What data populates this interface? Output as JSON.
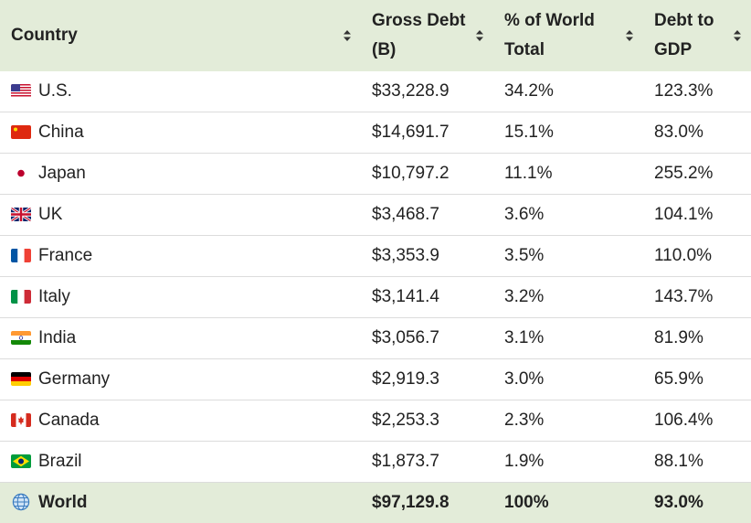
{
  "headers": [
    "Country",
    "Gross Debt (B)",
    "% of World Total",
    "Debt to GDP"
  ],
  "rows": [
    {
      "country": "U.S.",
      "flag": "us-flag-icon",
      "debt": "$33,228.9",
      "pct": "34.2%",
      "gdp": "123.3%"
    },
    {
      "country": "China",
      "flag": "china-flag-icon",
      "debt": "$14,691.7",
      "pct": "15.1%",
      "gdp": "83.0%"
    },
    {
      "country": "Japan",
      "flag": "japan-flag-icon",
      "debt": "$10,797.2",
      "pct": "11.1%",
      "gdp": "255.2%"
    },
    {
      "country": "UK",
      "flag": "uk-flag-icon",
      "debt": "$3,468.7",
      "pct": "3.6%",
      "gdp": "104.1%"
    },
    {
      "country": "France",
      "flag": "france-flag-icon",
      "debt": "$3,353.9",
      "pct": "3.5%",
      "gdp": "110.0%"
    },
    {
      "country": "Italy",
      "flag": "italy-flag-icon",
      "debt": "$3,141.4",
      "pct": "3.2%",
      "gdp": "143.7%"
    },
    {
      "country": "India",
      "flag": "india-flag-icon",
      "debt": "$3,056.7",
      "pct": "3.1%",
      "gdp": "81.9%"
    },
    {
      "country": "Germany",
      "flag": "germany-flag-icon",
      "debt": "$2,919.3",
      "pct": "3.0%",
      "gdp": "65.9%"
    },
    {
      "country": "Canada",
      "flag": "canada-flag-icon",
      "debt": "$2,253.3",
      "pct": "2.3%",
      "gdp": "106.4%"
    },
    {
      "country": "Brazil",
      "flag": "brazil-flag-icon",
      "debt": "$1,873.7",
      "pct": "1.9%",
      "gdp": "88.1%"
    }
  ],
  "total": {
    "country": "World",
    "icon": "globe-icon",
    "debt": "$97,129.8",
    "pct": "100%",
    "gdp": "93.0%"
  },
  "colors": {
    "header_bg": "#e3ecd9",
    "row_border": "#dcdcdc"
  },
  "chart_data": {
    "type": "table",
    "columns": [
      "Country",
      "Gross Debt (B)",
      "% of World Total",
      "Debt to GDP"
    ],
    "rows": [
      [
        "U.S.",
        "$33,228.9",
        "34.2%",
        "123.3%"
      ],
      [
        "China",
        "$14,691.7",
        "15.1%",
        "83.0%"
      ],
      [
        "Japan",
        "$10,797.2",
        "11.1%",
        "255.2%"
      ],
      [
        "UK",
        "$3,468.7",
        "3.6%",
        "104.1%"
      ],
      [
        "France",
        "$3,353.9",
        "3.5%",
        "110.0%"
      ],
      [
        "Italy",
        "$3,141.4",
        "3.2%",
        "143.7%"
      ],
      [
        "India",
        "$3,056.7",
        "3.1%",
        "81.9%"
      ],
      [
        "Germany",
        "$2,919.3",
        "3.0%",
        "65.9%"
      ],
      [
        "Canada",
        "$2,253.3",
        "2.3%",
        "106.4%"
      ],
      [
        "Brazil",
        "$1,873.7",
        "1.9%",
        "88.1%"
      ],
      [
        "World",
        "$97,129.8",
        "100%",
        "93.0%"
      ]
    ]
  }
}
